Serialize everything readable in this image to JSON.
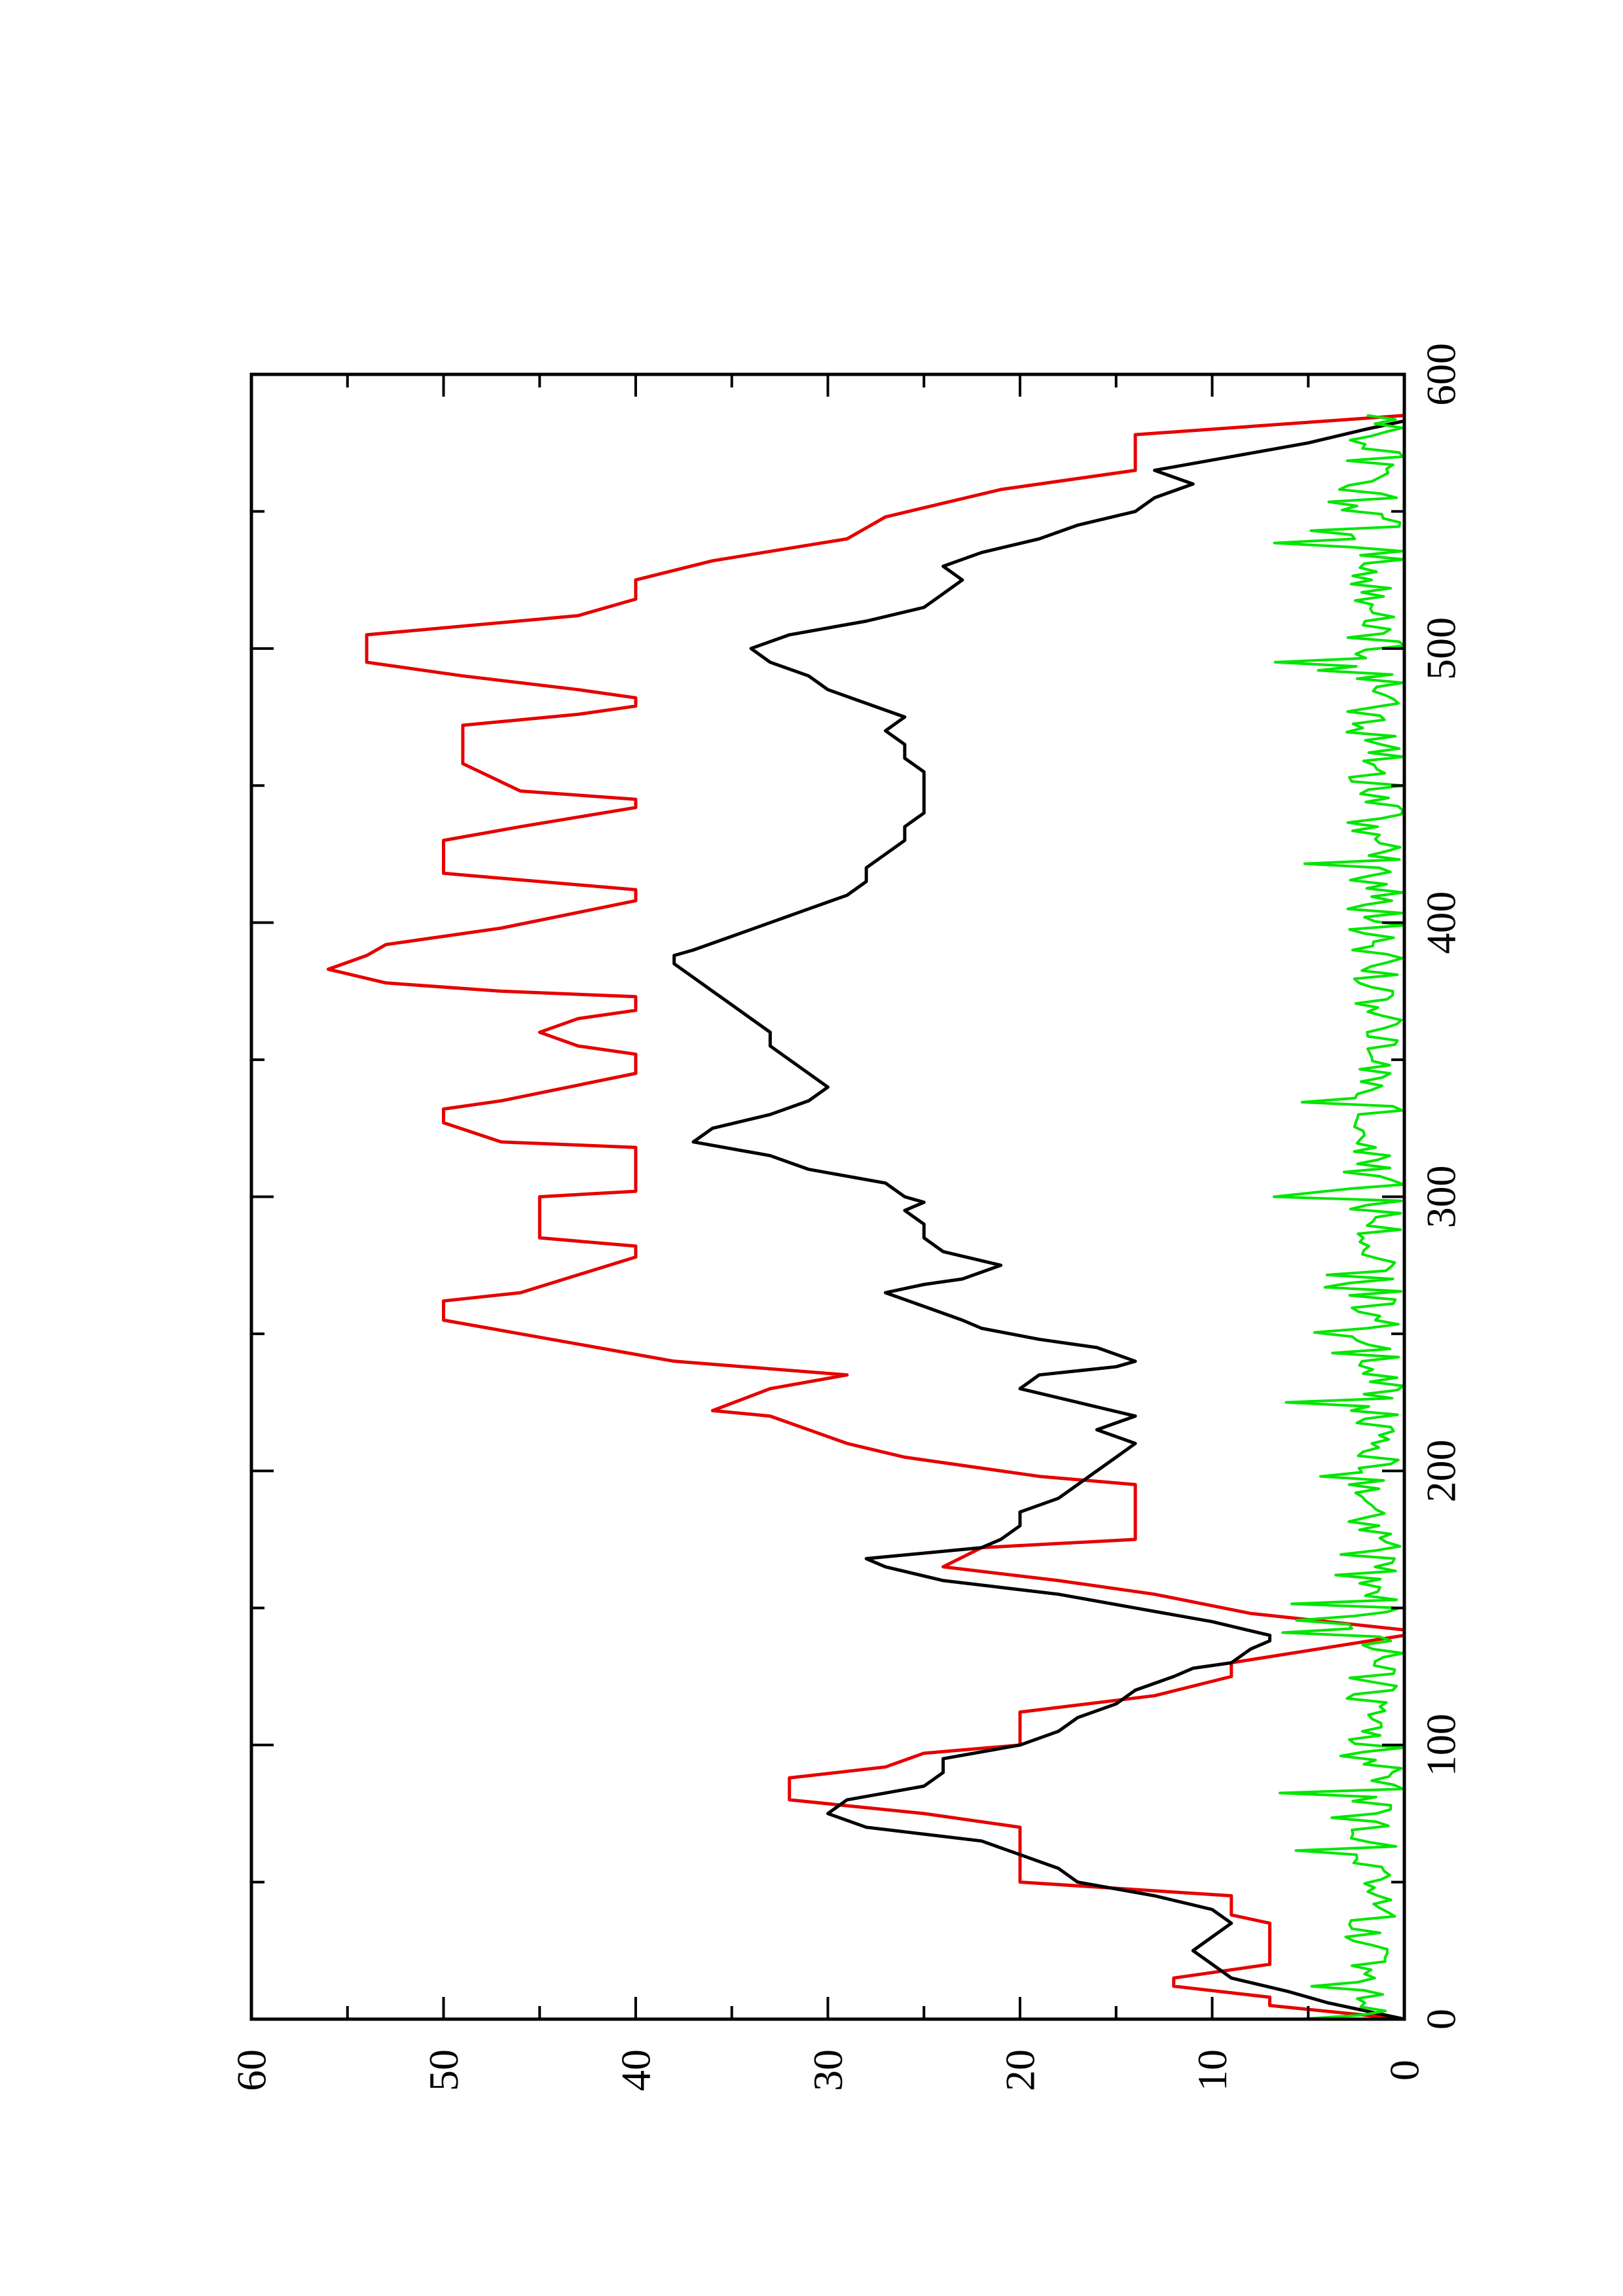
{
  "chart_data": {
    "type": "line",
    "orientation": "rotated-90-counterclockwise",
    "title": "",
    "xlabel": "",
    "ylabel": "",
    "xlim": [
      0,
      600
    ],
    "ylim": [
      0,
      60
    ],
    "x_ticks": [
      0,
      100,
      200,
      300,
      400,
      500,
      600
    ],
    "x_tick_labels": [
      "0",
      "100",
      "200",
      "300",
      "400",
      "500",
      "600"
    ],
    "x_minor_ticks": [
      50,
      150,
      250,
      350,
      450,
      550
    ],
    "y_ticks": [
      0,
      10,
      20,
      30,
      40,
      50,
      60
    ],
    "y_tick_labels": [
      "0",
      "10",
      "20",
      "30",
      "40",
      "50",
      "60"
    ],
    "y_minor_ticks": [
      5,
      15,
      25,
      35,
      45,
      55
    ],
    "grid": false,
    "legend": "none",
    "colors": {
      "black": "#000000",
      "red": "#e60000",
      "green": "#00e600"
    },
    "series": [
      {
        "color": "#e60000",
        "points": [
          [
            0,
            0
          ],
          [
            5,
            7
          ],
          [
            8,
            7
          ],
          [
            12,
            12
          ],
          [
            15,
            12
          ],
          [
            20,
            7
          ],
          [
            35,
            7
          ],
          [
            38,
            9
          ],
          [
            45,
            9
          ],
          [
            50,
            20
          ],
          [
            70,
            20
          ],
          [
            75,
            25
          ],
          [
            80,
            32
          ],
          [
            88,
            32
          ],
          [
            92,
            27
          ],
          [
            97,
            25
          ],
          [
            100,
            20
          ],
          [
            112,
            20
          ],
          [
            118,
            13
          ],
          [
            125,
            9
          ],
          [
            130,
            9
          ],
          [
            140,
            0
          ],
          [
            142,
            0
          ],
          [
            148,
            8
          ],
          [
            155,
            13
          ],
          [
            160,
            18
          ],
          [
            165,
            24
          ],
          [
            172,
            22
          ],
          [
            175,
            14
          ],
          [
            195,
            14
          ],
          [
            198,
            19
          ],
          [
            205,
            26
          ],
          [
            210,
            29
          ],
          [
            220,
            33
          ],
          [
            222,
            36
          ],
          [
            230,
            33
          ],
          [
            235,
            29
          ],
          [
            240,
            38
          ],
          [
            250,
            46
          ],
          [
            255,
            50
          ],
          [
            262,
            50
          ],
          [
            265,
            46
          ],
          [
            278,
            40
          ],
          [
            282,
            40
          ],
          [
            285,
            45
          ],
          [
            300,
            45
          ],
          [
            302,
            40
          ],
          [
            318,
            40
          ],
          [
            320,
            47
          ],
          [
            327,
            50
          ],
          [
            332,
            50
          ],
          [
            335,
            47
          ],
          [
            345,
            40
          ],
          [
            352,
            40
          ],
          [
            355,
            43
          ],
          [
            360,
            45
          ],
          [
            365,
            43
          ],
          [
            368,
            40
          ],
          [
            373,
            40
          ],
          [
            375,
            47
          ],
          [
            378,
            53
          ],
          [
            383,
            56
          ],
          [
            388,
            54
          ],
          [
            392,
            53
          ],
          [
            398,
            47
          ],
          [
            408,
            40
          ],
          [
            412,
            40
          ],
          [
            418,
            50
          ],
          [
            430,
            50
          ],
          [
            435,
            46
          ],
          [
            442,
            40
          ],
          [
            445,
            40
          ],
          [
            448,
            46
          ],
          [
            458,
            49
          ],
          [
            472,
            49
          ],
          [
            476,
            43
          ],
          [
            479,
            40
          ],
          [
            482,
            40
          ],
          [
            485,
            43
          ],
          [
            490,
            49
          ],
          [
            495,
            54
          ],
          [
            505,
            54
          ],
          [
            512,
            43
          ],
          [
            518,
            40
          ],
          [
            525,
            40
          ],
          [
            532,
            36
          ],
          [
            540,
            29
          ],
          [
            548,
            27
          ],
          [
            558,
            21
          ],
          [
            565,
            14
          ],
          [
            578,
            14
          ],
          [
            585,
            0
          ]
        ]
      },
      {
        "color": "#000000",
        "points": [
          [
            0,
            0
          ],
          [
            3,
            2
          ],
          [
            6,
            4
          ],
          [
            10,
            6
          ],
          [
            15,
            9
          ],
          [
            20,
            10
          ],
          [
            25,
            11
          ],
          [
            30,
            10
          ],
          [
            35,
            9
          ],
          [
            40,
            10
          ],
          [
            45,
            13
          ],
          [
            50,
            17
          ],
          [
            55,
            18
          ],
          [
            60,
            20
          ],
          [
            65,
            22
          ],
          [
            70,
            28
          ],
          [
            75,
            30
          ],
          [
            80,
            29
          ],
          [
            85,
            25
          ],
          [
            90,
            24
          ],
          [
            95,
            24
          ],
          [
            100,
            20
          ],
          [
            105,
            18
          ],
          [
            110,
            17
          ],
          [
            115,
            15
          ],
          [
            120,
            14
          ],
          [
            125,
            12
          ],
          [
            128,
            11
          ],
          [
            130,
            9
          ],
          [
            135,
            8
          ],
          [
            138,
            7
          ],
          [
            140,
            7
          ],
          [
            145,
            10
          ],
          [
            150,
            14
          ],
          [
            155,
            18
          ],
          [
            160,
            24
          ],
          [
            165,
            27
          ],
          [
            168,
            28
          ],
          [
            172,
            22
          ],
          [
            175,
            21
          ],
          [
            180,
            20
          ],
          [
            185,
            20
          ],
          [
            190,
            18
          ],
          [
            195,
            17
          ],
          [
            200,
            16
          ],
          [
            205,
            15
          ],
          [
            210,
            14
          ],
          [
            215,
            16
          ],
          [
            220,
            14
          ],
          [
            225,
            17
          ],
          [
            230,
            20
          ],
          [
            235,
            19
          ],
          [
            238,
            15
          ],
          [
            240,
            14
          ],
          [
            245,
            16
          ],
          [
            248,
            19
          ],
          [
            252,
            22
          ],
          [
            255,
            23
          ],
          [
            260,
            25
          ],
          [
            265,
            27
          ],
          [
            268,
            25
          ],
          [
            270,
            23
          ],
          [
            275,
            21
          ],
          [
            280,
            24
          ],
          [
            285,
            25
          ],
          [
            290,
            25
          ],
          [
            295,
            26
          ],
          [
            298,
            25
          ],
          [
            300,
            26
          ],
          [
            305,
            27
          ],
          [
            310,
            31
          ],
          [
            315,
            33
          ],
          [
            320,
            37
          ],
          [
            325,
            36
          ],
          [
            330,
            33
          ],
          [
            335,
            31
          ],
          [
            340,
            30
          ],
          [
            345,
            31
          ],
          [
            350,
            32
          ],
          [
            355,
            33
          ],
          [
            360,
            33
          ],
          [
            365,
            34
          ],
          [
            370,
            35
          ],
          [
            375,
            36
          ],
          [
            380,
            37
          ],
          [
            385,
            38
          ],
          [
            388,
            38
          ],
          [
            390,
            37
          ],
          [
            395,
            35
          ],
          [
            400,
            33
          ],
          [
            405,
            31
          ],
          [
            410,
            29
          ],
          [
            415,
            28
          ],
          [
            420,
            28
          ],
          [
            425,
            27
          ],
          [
            430,
            26
          ],
          [
            435,
            26
          ],
          [
            440,
            25
          ],
          [
            445,
            25
          ],
          [
            450,
            25
          ],
          [
            455,
            25
          ],
          [
            460,
            26
          ],
          [
            465,
            26
          ],
          [
            470,
            27
          ],
          [
            475,
            26
          ],
          [
            480,
            28
          ],
          [
            485,
            30
          ],
          [
            490,
            31
          ],
          [
            495,
            33
          ],
          [
            500,
            34
          ],
          [
            505,
            32
          ],
          [
            510,
            28
          ],
          [
            515,
            25
          ],
          [
            520,
            24
          ],
          [
            525,
            23
          ],
          [
            530,
            24
          ],
          [
            535,
            22
          ],
          [
            540,
            19
          ],
          [
            545,
            17
          ],
          [
            550,
            14
          ],
          [
            555,
            13
          ],
          [
            560,
            11
          ],
          [
            565,
            13
          ],
          [
            570,
            9
          ],
          [
            575,
            5
          ],
          [
            580,
            2
          ],
          [
            583,
            0
          ]
        ]
      },
      {
        "color": "#00e600",
        "noise": true,
        "x_range": [
          0,
          585
        ],
        "y_range": [
          0,
          7
        ],
        "typical_level": 1.5
      }
    ]
  }
}
